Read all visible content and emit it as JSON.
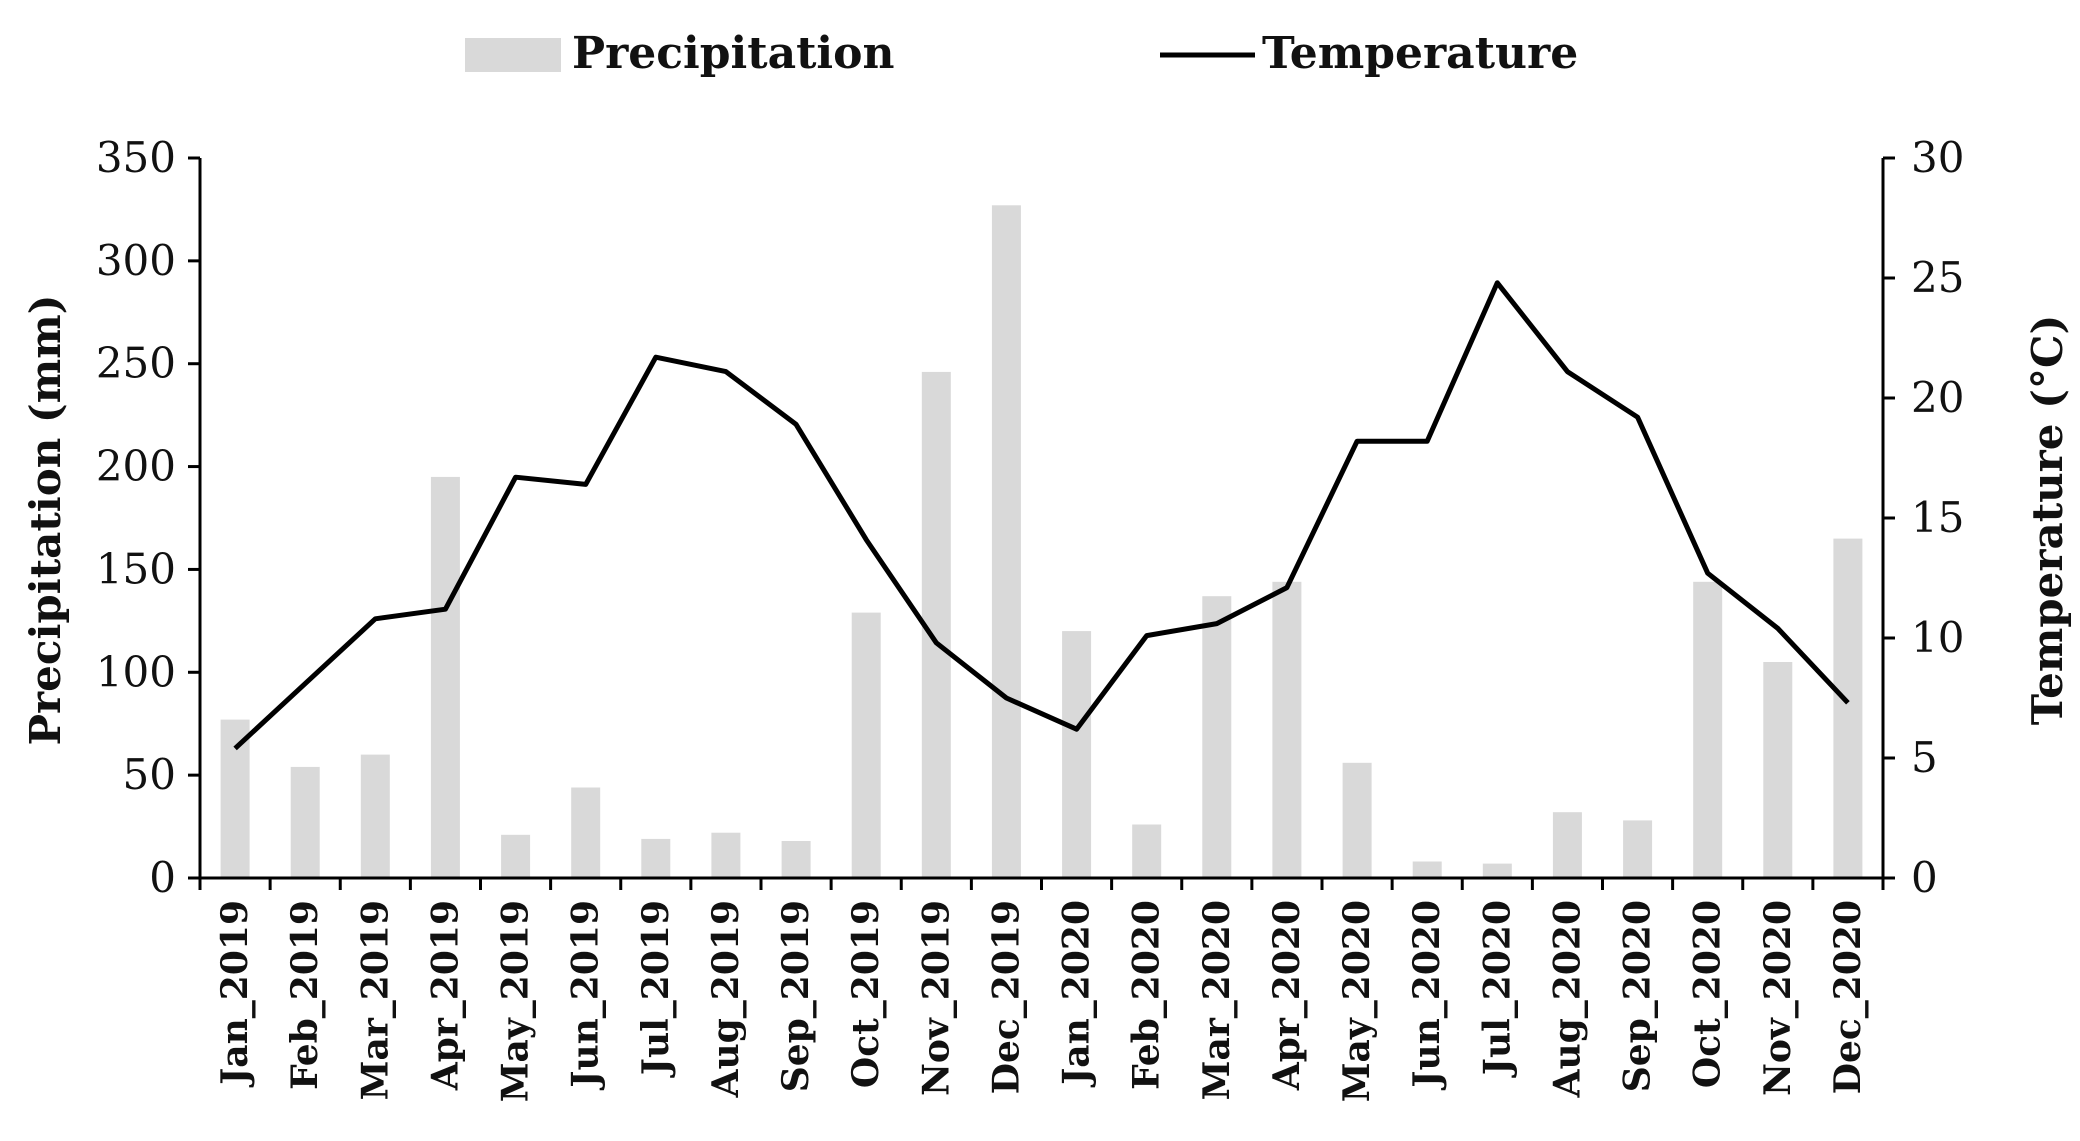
{
  "chart_data": {
    "type": "bar",
    "categories": [
      "Jan_2019",
      "Feb_2019",
      "Mar_2019",
      "Apr_2019",
      "May_2019",
      "Jun_2019",
      "Jul_2019",
      "Aug_2019",
      "Sep_2019",
      "Oct_2019",
      "Nov_2019",
      "Dec_2019",
      "Jan_2020",
      "Feb_2020",
      "Mar_2020",
      "Apr_2020",
      "May_2020",
      "Jun_2020",
      "Jul_2020",
      "Aug_2020",
      "Sep_2020",
      "Oct_2020",
      "Nov_2020",
      "Dec_2020"
    ],
    "series": [
      {
        "name": "Precipitation",
        "type": "bar",
        "axis": "left",
        "color": "#d9d9d9",
        "values": [
          77,
          54,
          60,
          195,
          21,
          44,
          19,
          22,
          18,
          129,
          246,
          327,
          120,
          26,
          137,
          144,
          56,
          8,
          7,
          32,
          28,
          144,
          105,
          165
        ]
      },
      {
        "name": "Temperature",
        "type": "line",
        "axis": "right",
        "color": "#000000",
        "values": [
          5.4,
          8.1,
          10.8,
          11.2,
          16.7,
          16.4,
          21.7,
          21.1,
          18.9,
          14.1,
          9.8,
          7.5,
          6.2,
          10.1,
          10.6,
          12.1,
          18.2,
          18.2,
          24.8,
          21.1,
          19.2,
          12.7,
          10.4,
          7.3
        ]
      }
    ],
    "y_left": {
      "label": "Precipitation (mm)",
      "lim": [
        0,
        350
      ],
      "ticks": [
        0,
        50,
        100,
        150,
        200,
        250,
        300,
        350
      ]
    },
    "y_right": {
      "label": "Temperature (°C)",
      "lim": [
        0,
        30
      ],
      "ticks": [
        0,
        5,
        10,
        15,
        20,
        25,
        30
      ]
    },
    "legend": {
      "position": "top-center",
      "entries": [
        "Precipitation",
        "Temperature"
      ]
    },
    "grid": false
  }
}
